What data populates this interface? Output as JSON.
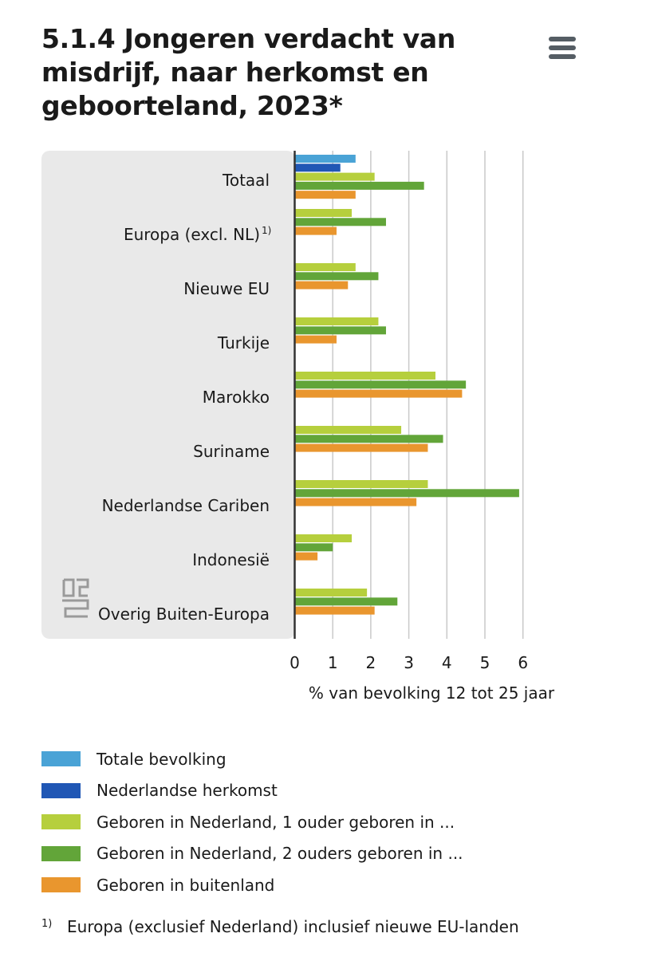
{
  "header": {
    "title": "5.1.4 Jongeren verdacht van misdrijf, naar herkomst en geboorteland, 2023*",
    "menu_icon": "hamburger-menu-icon"
  },
  "colors": {
    "panel_background": "#e9e9e9",
    "gridline": "#c9c9c9",
    "axis": "#333333"
  },
  "logo": {
    "icon": "cbs-logo-icon"
  },
  "chart_data": {
    "type": "bar",
    "orientation": "horizontal",
    "title": "5.1.4 Jongeren verdacht van misdrijf, naar herkomst en geboorteland, 2023*",
    "xlabel": "% van bevolking 12 tot 25 jaar",
    "ylabel": "",
    "xlim": [
      0,
      6
    ],
    "xticks": [
      "0",
      "1",
      "2",
      "3",
      "4",
      "5",
      "6"
    ],
    "grid": true,
    "legend_position": "bottom",
    "categories": [
      "Totaal",
      "Europa (excl. NL)",
      "Nieuwe EU",
      "Turkije",
      "Marokko",
      "Suriname",
      "Nederlandse Cariben",
      "Indonesië",
      "Overig Buiten-Europa"
    ],
    "category_notes": [
      "",
      "1)",
      "",
      "",
      "",
      "",
      "",
      "",
      ""
    ],
    "series": [
      {
        "name": "Totale bevolking",
        "color": "#4aa3d6",
        "values": [
          1.6,
          null,
          null,
          null,
          null,
          null,
          null,
          null,
          null
        ]
      },
      {
        "name": "Nederlandse herkomst",
        "color": "#2057b5",
        "values": [
          1.2,
          null,
          null,
          null,
          null,
          null,
          null,
          null,
          null
        ]
      },
      {
        "name": "Geboren in Nederland, 1 ouder geboren in ...",
        "color": "#b6cf3d",
        "values": [
          2.1,
          1.5,
          1.6,
          2.2,
          3.7,
          2.8,
          3.5,
          1.5,
          1.9
        ]
      },
      {
        "name": "Geboren in Nederland, 2 ouders geboren in ...",
        "color": "#62a539",
        "values": [
          3.4,
          2.4,
          2.2,
          2.4,
          4.5,
          3.9,
          5.9,
          1.0,
          2.7
        ]
      },
      {
        "name": "Geboren in buitenland",
        "color": "#e9962e",
        "values": [
          1.6,
          1.1,
          1.4,
          1.1,
          4.4,
          3.5,
          3.2,
          0.6,
          2.1
        ]
      }
    ]
  },
  "footnote": {
    "marker": "1)",
    "text": "Europa (exclusief Nederland) inclusief nieuwe EU-landen"
  }
}
